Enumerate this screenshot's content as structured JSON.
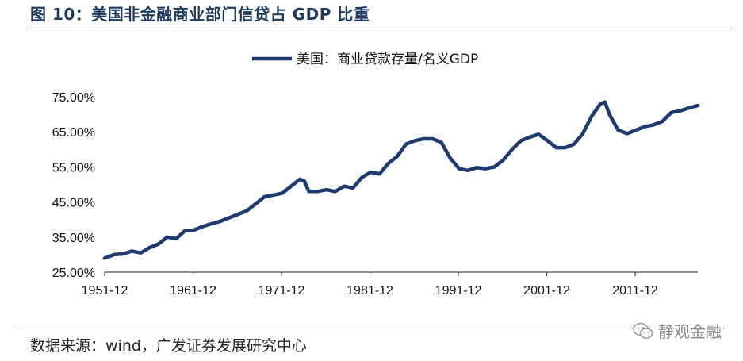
{
  "title": "图 10：美国非金融商业部门信贷占 GDP 比重",
  "source": "数据来源：wind，广发证券发展研究中心",
  "watermark": "静观金融",
  "colors": {
    "line": "#1f3a6e",
    "title": "#1f3a5f"
  },
  "chart_data": {
    "type": "line",
    "legend_position": "top-center",
    "grid": false,
    "x_ticks": [
      "1951-12",
      "1961-12",
      "1971-12",
      "1981-12",
      "1991-12",
      "2001-12",
      "2011-12"
    ],
    "y_ticks": [
      "75.00%",
      "65.00%",
      "55.00%",
      "45.00%",
      "35.00%",
      "25.00%"
    ],
    "ylim": [
      25,
      75
    ],
    "xlim": [
      1951.92,
      2019.0
    ],
    "series": [
      {
        "name": "美国：商业贷款存量/名义GDP",
        "x": [
          1951.92,
          1953.0,
          1954.0,
          1955.0,
          1956.0,
          1957.0,
          1958.0,
          1959.0,
          1960.0,
          1961.0,
          1962.0,
          1963.0,
          1964.0,
          1965.0,
          1966.0,
          1967.0,
          1968.0,
          1969.0,
          1970.0,
          1971.0,
          1972.0,
          1973.0,
          1974.0,
          1974.5,
          1975.0,
          1976.0,
          1977.0,
          1978.0,
          1979.0,
          1980.0,
          1981.0,
          1982.0,
          1983.0,
          1984.0,
          1985.0,
          1986.0,
          1987.0,
          1988.0,
          1989.0,
          1990.0,
          1991.0,
          1992.0,
          1993.0,
          1994.0,
          1995.0,
          1996.0,
          1997.0,
          1998.0,
          1999.0,
          2000.0,
          2001.0,
          2002.0,
          2003.0,
          2004.0,
          2005.0,
          2006.0,
          2007.0,
          2008.0,
          2008.5,
          2009.0,
          2010.0,
          2011.0,
          2012.0,
          2013.0,
          2014.0,
          2015.0,
          2016.0,
          2017.0,
          2018.0,
          2019.0
        ],
        "values": [
          29.0,
          30.0,
          30.2,
          31.0,
          30.5,
          32.0,
          33.0,
          35.0,
          34.5,
          36.8,
          37.0,
          38.0,
          38.8,
          39.5,
          40.5,
          41.5,
          42.5,
          44.5,
          46.5,
          47.0,
          47.5,
          49.5,
          51.5,
          51.0,
          48.0,
          48.0,
          48.5,
          48.0,
          49.5,
          49.0,
          52.0,
          53.5,
          53.0,
          56.0,
          58.0,
          61.5,
          62.5,
          63.0,
          63.0,
          62.0,
          57.5,
          54.5,
          54.0,
          54.8,
          54.5,
          55.0,
          57.0,
          60.0,
          62.5,
          63.5,
          64.3,
          62.5,
          60.5,
          60.5,
          61.5,
          64.5,
          69.5,
          73.0,
          73.5,
          70.0,
          65.5,
          64.5,
          65.5,
          66.5,
          67.0,
          68.0,
          70.5,
          71.0,
          71.8,
          72.5
        ]
      }
    ]
  }
}
